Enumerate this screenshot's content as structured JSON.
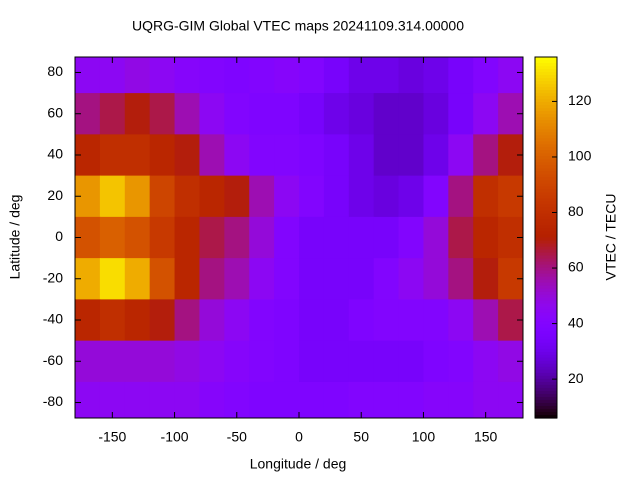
{
  "chart_data": {
    "type": "heatmap",
    "title": "UQRG-GIM Global VTEC maps 20241109.314.00000",
    "x_label": "Longitude / deg",
    "y_label": "Latitude / deg",
    "colorbar_label": "VTEC / TECU",
    "colormap": "gnuplot",
    "x": [
      -170,
      -150,
      -130,
      -110,
      -90,
      -70,
      -50,
      -30,
      -10,
      10,
      30,
      50,
      70,
      90,
      110,
      130,
      150,
      170
    ],
    "y": [
      80,
      60,
      40,
      20,
      0,
      -20,
      -40,
      -60,
      -80
    ],
    "z": [
      [
        45,
        45,
        48,
        45,
        42,
        40,
        38,
        40,
        42,
        40,
        35,
        30,
        30,
        28,
        30,
        35,
        40,
        45
      ],
      [
        60,
        65,
        70,
        65,
        55,
        45,
        40,
        38,
        38,
        35,
        30,
        28,
        25,
        25,
        28,
        35,
        45,
        55
      ],
      [
        75,
        80,
        80,
        75,
        70,
        55,
        45,
        40,
        40,
        38,
        35,
        30,
        25,
        25,
        30,
        45,
        60,
        70
      ],
      [
        115,
        125,
        115,
        90,
        80,
        75,
        70,
        55,
        45,
        40,
        35,
        30,
        28,
        30,
        40,
        60,
        80,
        85
      ],
      [
        95,
        100,
        95,
        85,
        75,
        65,
        60,
        50,
        40,
        35,
        35,
        35,
        35,
        40,
        50,
        65,
        75,
        80
      ],
      [
        120,
        130,
        120,
        95,
        75,
        60,
        55,
        45,
        40,
        35,
        35,
        35,
        40,
        45,
        50,
        60,
        70,
        85
      ],
      [
        75,
        80,
        75,
        70,
        60,
        50,
        45,
        40,
        38,
        35,
        35,
        38,
        40,
        40,
        40,
        45,
        55,
        65
      ],
      [
        50,
        50,
        50,
        50,
        48,
        45,
        42,
        40,
        38,
        35,
        35,
        35,
        35,
        35,
        38,
        40,
        45,
        48
      ],
      [
        45,
        45,
        45,
        45,
        45,
        42,
        40,
        38,
        38,
        38,
        38,
        40,
        40,
        40,
        42,
        42,
        45,
        45
      ]
    ],
    "xlim": [
      -180,
      180
    ],
    "ylim": [
      -87.5,
      87.5
    ],
    "zlim": [
      6,
      136
    ],
    "xticks": [
      -150,
      -100,
      -50,
      0,
      50,
      100,
      150
    ],
    "yticks": [
      -80,
      -60,
      -40,
      -20,
      0,
      20,
      40,
      60,
      80
    ],
    "zticks": [
      20,
      40,
      60,
      80,
      100,
      120
    ]
  }
}
